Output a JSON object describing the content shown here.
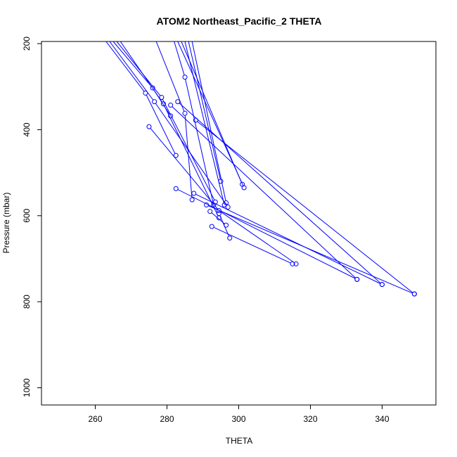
{
  "chart_data": {
    "type": "line",
    "title": "ATOM2 Northeast_Pacific_2 THETA",
    "xlabel": "THETA",
    "ylabel": "Pressure (mbar)",
    "xlim": [
      245,
      355
    ],
    "ylim": [
      1040,
      195
    ],
    "y_reversed": true,
    "xticks": [
      260,
      280,
      300,
      320,
      340
    ],
    "yticks": [
      200,
      400,
      600,
      800,
      1000
    ],
    "grid": false,
    "line_color": "#0000ff",
    "marker": "open-circle",
    "series": [
      {
        "points": [
          [
            293.0,
            575
          ],
          [
            285.0,
            278
          ],
          [
            282.0,
            195
          ]
        ],
        "markers": [
          true,
          true,
          false
        ]
      },
      {
        "points": [
          [
            287.0,
            563
          ],
          [
            285.0,
            362
          ],
          [
            277.0,
            195
          ]
        ],
        "markers": [
          true,
          true,
          false
        ]
      },
      {
        "points": [
          [
            301.0,
            527
          ],
          [
            284.0,
            195
          ]
        ],
        "markers": [
          true,
          false
        ]
      },
      {
        "points": [
          [
            301.5,
            535
          ],
          [
            283.0,
            195
          ]
        ],
        "markers": [
          true,
          false
        ]
      },
      {
        "points": [
          [
            295.0,
            520
          ],
          [
            286.0,
            195
          ]
        ],
        "markers": [
          true,
          false
        ]
      },
      {
        "points": [
          [
            296.5,
            570
          ],
          [
            287.0,
            195
          ]
        ],
        "markers": [
          true,
          false
        ]
      },
      {
        "points": [
          [
            296.0,
            575
          ],
          [
            285.0,
            195
          ]
        ],
        "markers": [
          true,
          false
        ]
      },
      {
        "points": [
          [
            282.5,
            460
          ],
          [
            274.0,
            315
          ],
          [
            263.0,
            195
          ]
        ],
        "markers": [
          true,
          true,
          false
        ]
      },
      {
        "points": [
          [
            281.0,
            368
          ],
          [
            276.0,
            303
          ],
          [
            265.0,
            195
          ]
        ],
        "markers": [
          true,
          true,
          false
        ]
      },
      {
        "points": [
          [
            293.5,
            568
          ],
          [
            278.5,
            325
          ],
          [
            266.0,
            195
          ]
        ],
        "markers": [
          true,
          true,
          false
        ]
      },
      {
        "points": [
          [
            297.0,
            580
          ],
          [
            276.5,
            335
          ],
          [
            264.0,
            195
          ]
        ],
        "markers": [
          true,
          true,
          false
        ]
      },
      {
        "points": [
          [
            294.5,
            605
          ],
          [
            279.0,
            340
          ],
          [
            267.0,
            195
          ]
        ],
        "markers": [
          true,
          true,
          false
        ]
      },
      {
        "points": [
          [
            333.0,
            748
          ],
          [
            281.0,
            343
          ]
        ],
        "markers": [
          true,
          true
        ]
      },
      {
        "points": [
          [
            340.0,
            760
          ],
          [
            283.0,
            335
          ]
        ],
        "markers": [
          true,
          true
        ]
      },
      {
        "points": [
          [
            349.0,
            782
          ],
          [
            288.0,
            378
          ]
        ],
        "markers": [
          true,
          true
        ]
      },
      {
        "points": [
          [
            316.0,
            712
          ],
          [
            294.5,
            588
          ],
          [
            275.0,
            393
          ]
        ],
        "markers": [
          true,
          true,
          true
        ]
      },
      {
        "points": [
          [
            333.0,
            748
          ],
          [
            282.5,
            537
          ]
        ],
        "markers": [
          true,
          true
        ]
      },
      {
        "points": [
          [
            340.0,
            760
          ],
          [
            287.5,
            548
          ]
        ],
        "markers": [
          true,
          true
        ]
      },
      {
        "points": [
          [
            349.0,
            782
          ],
          [
            291.0,
            575
          ]
        ],
        "markers": [
          true,
          true
        ]
      },
      {
        "points": [
          [
            315.0,
            712
          ],
          [
            292.5,
            625
          ]
        ],
        "markers": [
          true,
          true
        ]
      },
      {
        "points": [
          [
            297.5,
            652
          ],
          [
            294.5,
            595
          ]
        ],
        "markers": [
          true,
          true
        ]
      },
      {
        "points": [
          [
            296.5,
            622
          ],
          [
            292.0,
            590
          ]
        ],
        "markers": [
          true,
          true
        ]
      }
    ]
  }
}
